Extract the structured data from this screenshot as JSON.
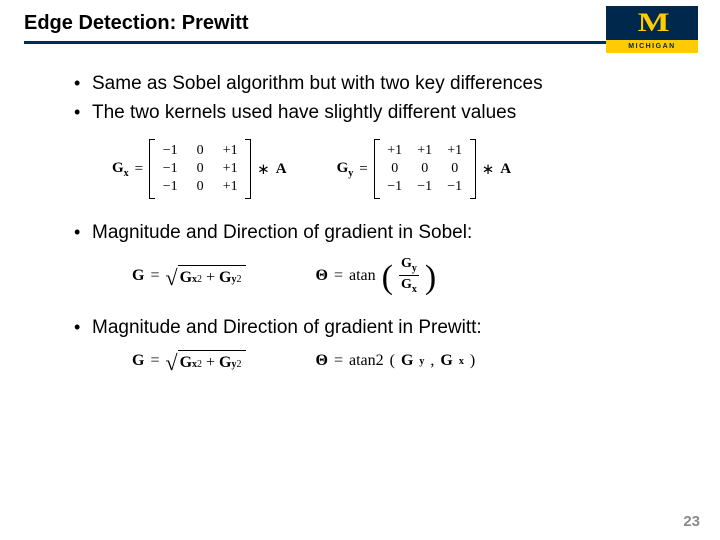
{
  "title": "Edge Detection: Prewitt",
  "logo": {
    "letter": "M",
    "label": "MICHIGAN"
  },
  "bullets": {
    "b1": "Same as Sobel algorithm but with two key differences",
    "b2": "The two kernels used have slightly different values",
    "b3": "Magnitude and Direction of gradient in Sobel:",
    "b4": "Magnitude and Direction of gradient in Prewitt:"
  },
  "kernels": {
    "gx_label": "G",
    "gx_sub": "x",
    "gy_label": "G",
    "gy_sub": "y",
    "conv": "∗",
    "A": "A",
    "eq": "=",
    "gx": [
      "−1",
      "0",
      "+1",
      "−1",
      "0",
      "+1",
      "−1",
      "0",
      "+1"
    ],
    "gy": [
      "+1",
      "+1",
      "+1",
      "0",
      "0",
      "0",
      "−1",
      "−1",
      "−1"
    ]
  },
  "sobel": {
    "mag_lhs": "G",
    "eq": "=",
    "gx": "G",
    "gx_sub": "x",
    "gx_sup": "2",
    "plus": "+",
    "gy": "G",
    "gy_sub": "y",
    "gy_sup": "2",
    "dir_lhs": "Θ",
    "atan": "atan"
  },
  "prewitt": {
    "mag_lhs": "G",
    "eq": "=",
    "gx": "G",
    "gx_sub": "x",
    "gx_sup": "2",
    "plus": "+",
    "gy": "G",
    "gy_sub": "y",
    "gy_sup": "2",
    "dir_lhs": "Θ",
    "atan2": "atan2",
    "comma": ", ",
    "lp": "(",
    "rp": ")"
  },
  "page_number": "23",
  "colors": {
    "underline": "#002b5c",
    "logo_bg": "#00274c",
    "logo_fg": "#ffcb05",
    "pagenum": "#8a8a8a"
  }
}
